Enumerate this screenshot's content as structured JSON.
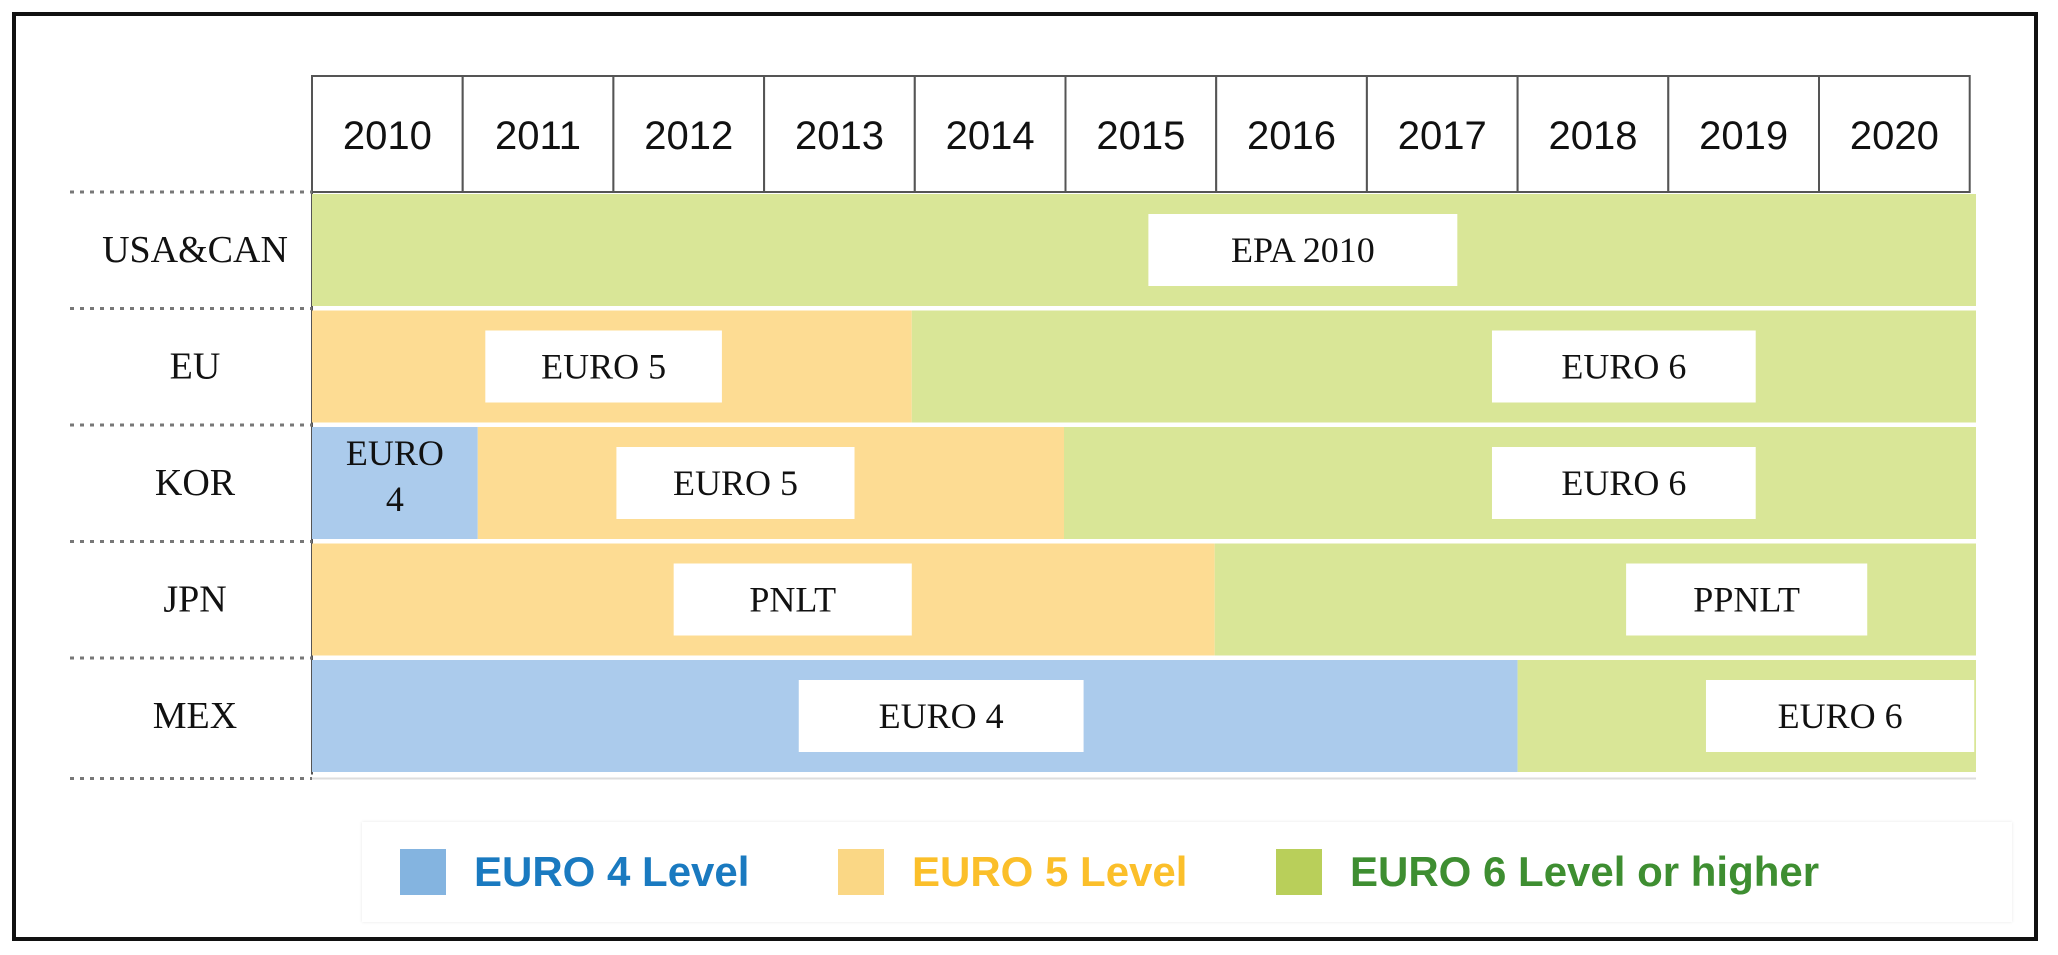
{
  "chart_data": {
    "type": "table",
    "years": [
      "2010",
      "2011",
      "2012",
      "2013",
      "2014",
      "2015",
      "2016",
      "2017",
      "2018",
      "2019",
      "2020"
    ],
    "regions": [
      {
        "name": "USA&CAN",
        "segments": [
          {
            "level": "euro6",
            "start": 2010,
            "end": 2020,
            "label": "EPA 2010",
            "label_year_from": 2015.55,
            "label_year_to": 2017.6
          }
        ]
      },
      {
        "name": "EU",
        "segments": [
          {
            "level": "euro5",
            "start": 2010,
            "end": 2013.98,
            "label": "EURO 5",
            "label_year_from": 2011.15,
            "label_year_to": 2012.72
          },
          {
            "level": "euro6",
            "start": 2013.98,
            "end": 2020,
            "label": "EURO 6",
            "label_year_from": 2017.83,
            "label_year_to": 2019.58
          }
        ]
      },
      {
        "name": "KOR",
        "segments": [
          {
            "level": "euro4",
            "start": 2010,
            "end": 2011.1,
            "label": "EURO 4",
            "label_year_from": null,
            "label_year_to": null
          },
          {
            "level": "euro5",
            "start": 2011.1,
            "end": 2014.99,
            "label": "EURO 5",
            "label_year_from": 2012.02,
            "label_year_to": 2013.6
          },
          {
            "level": "euro6",
            "start": 2014.99,
            "end": 2020,
            "label": "EURO 6",
            "label_year_from": 2017.83,
            "label_year_to": 2019.58
          }
        ]
      },
      {
        "name": "JPN",
        "segments": [
          {
            "level": "euro5",
            "start": 2010,
            "end": 2015.99,
            "label": "PNLT",
            "label_year_from": 2012.4,
            "label_year_to": 2013.98
          },
          {
            "level": "euro6",
            "start": 2015.99,
            "end": 2020,
            "label": "PPNLT",
            "label_year_from": 2018.72,
            "label_year_to": 2020.32
          }
        ]
      },
      {
        "name": "MEX",
        "segments": [
          {
            "level": "euro4",
            "start": 2010,
            "end": 2018,
            "label": "EURO 4",
            "label_year_from": 2013.23,
            "label_year_to": 2015.12
          },
          {
            "level": "euro6",
            "start": 2018,
            "end": 2020,
            "label": "EURO 6",
            "label_year_from": 2019.25,
            "label_year_to": 2021.03
          }
        ]
      }
    ],
    "legend": [
      {
        "key": "euro4",
        "label": "EURO 4 Level",
        "swatch_color": "#84b4e0",
        "text_color": "#1a7ac0"
      },
      {
        "key": "euro5",
        "label": "EURO 5 Level",
        "swatch_color": "#fad785",
        "text_color": "#fbbf2a"
      },
      {
        "key": "euro6",
        "label": "EURO 6 Level or higher",
        "swatch_color": "#b9cf5a",
        "text_color": "#3e8e31"
      }
    ],
    "level_colors": {
      "euro4": "#abcbec",
      "euro5": "#fddc93",
      "euro6": "#d9e697"
    },
    "grid": true,
    "legend_position": "bottom"
  }
}
